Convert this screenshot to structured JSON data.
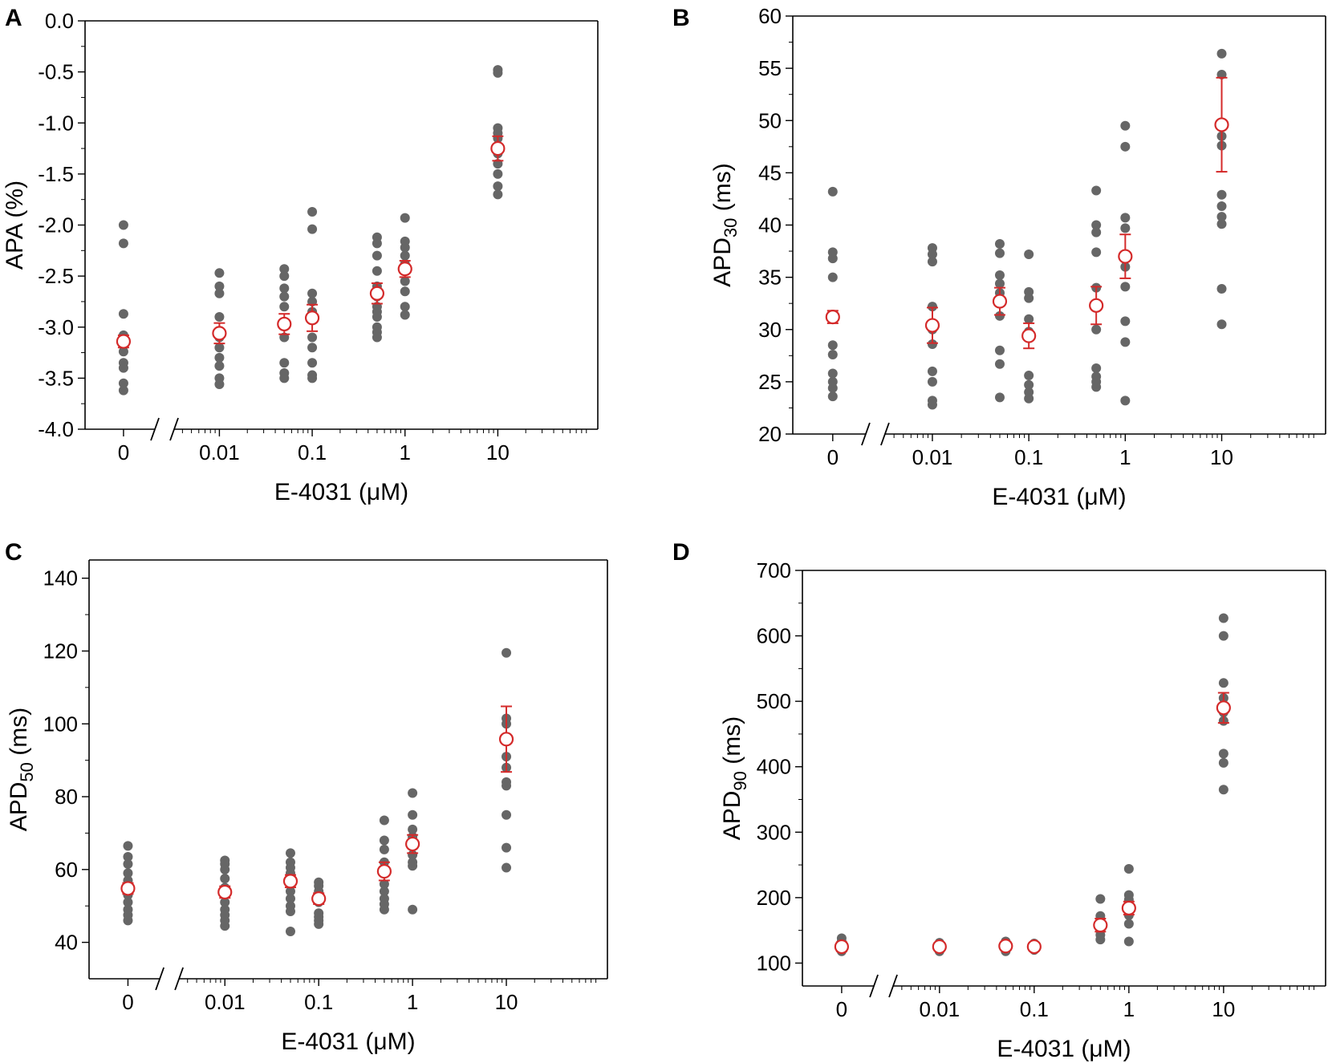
{
  "figure": {
    "colors": {
      "point": "#666666",
      "mean": "#d42a2a",
      "axis": "#000000"
    }
  },
  "chart_data": [
    {
      "panel": "A",
      "type": "scatter",
      "ylabel": "APA (%)",
      "ylabel_sub": "",
      "ylabel_after": "",
      "xlabel": "E-4031 (μM)",
      "x_ticks": [
        "0",
        "0.01",
        "0.1",
        "1",
        "10"
      ],
      "ylim": [
        -4.0,
        0.0
      ],
      "y_ticks": [
        -4.0,
        -3.5,
        -3.0,
        -2.5,
        -2.0,
        -1.5,
        -1.0,
        -0.5,
        0.0
      ],
      "y_tick_labels": [
        "-4.0",
        "-3.5",
        "-3.0",
        "-2.5",
        "-2.0",
        "-1.5",
        "-1.0",
        "-0.5",
        "0.0"
      ],
      "groups": [
        {
          "dose": 0,
          "values": [
            -2.0,
            -2.18,
            -2.87,
            -3.08,
            -3.12,
            -3.18,
            -3.24,
            -3.35,
            -3.4,
            -3.55,
            -3.62
          ],
          "mean": -3.14,
          "err": 0.06
        },
        {
          "dose": 0.01,
          "values": [
            -2.47,
            -2.6,
            -2.67,
            -2.9,
            -3.05,
            -3.1,
            -3.2,
            -3.3,
            -3.38,
            -3.5,
            -3.56
          ],
          "mean": -3.06,
          "err": 0.1
        },
        {
          "dose": 0.05,
          "values": [
            -2.43,
            -2.5,
            -2.62,
            -2.7,
            -2.8,
            -2.95,
            -3.1,
            -3.35,
            -3.45,
            -3.5
          ],
          "mean": -2.97,
          "err": 0.1
        },
        {
          "dose": 0.1,
          "values": [
            -1.87,
            -2.04,
            -2.67,
            -2.75,
            -2.85,
            -3.1,
            -3.2,
            -3.35,
            -3.47,
            -3.5
          ],
          "mean": -2.91,
          "err": 0.13
        },
        {
          "dose": 0.5,
          "values": [
            -2.12,
            -2.18,
            -2.3,
            -2.45,
            -2.6,
            -2.7,
            -2.8,
            -2.85,
            -2.9,
            -3.0,
            -3.05,
            -3.1
          ],
          "mean": -2.67,
          "err": 0.1
        },
        {
          "dose": 1,
          "values": [
            -1.93,
            -2.16,
            -2.22,
            -2.3,
            -2.38,
            -2.45,
            -2.55,
            -2.65,
            -2.8,
            -2.88
          ],
          "mean": -2.43,
          "err": 0.08
        },
        {
          "dose": 10,
          "values": [
            -0.48,
            -0.51,
            -1.05,
            -1.1,
            -1.15,
            -1.25,
            -1.3,
            -1.4,
            -1.5,
            -1.62,
            -1.7
          ],
          "mean": -1.25,
          "err": 0.12
        }
      ]
    },
    {
      "panel": "B",
      "type": "scatter",
      "ylabel": "APD",
      "ylabel_sub": "30",
      "ylabel_after": " (ms)",
      "xlabel": "E-4031 (μM)",
      "x_ticks": [
        "0",
        "0.01",
        "0.1",
        "1",
        "10"
      ],
      "ylim": [
        20,
        60
      ],
      "y_ticks": [
        20,
        25,
        30,
        35,
        40,
        45,
        50,
        55,
        60
      ],
      "y_tick_labels": [
        "20",
        "25",
        "30",
        "35",
        "40",
        "45",
        "50",
        "55",
        "60"
      ],
      "groups": [
        {
          "dose": 0,
          "values": [
            43.2,
            37.4,
            36.8,
            35.0,
            31.0,
            28.5,
            27.6,
            25.8,
            25.0,
            24.4,
            23.6
          ],
          "mean": 31.2,
          "err": 0.6
        },
        {
          "dose": 0.01,
          "values": [
            37.8,
            37.2,
            36.5,
            32.2,
            30.0,
            28.6,
            26.0,
            25.0,
            23.2,
            22.8
          ],
          "mean": 30.4,
          "err": 1.7
        },
        {
          "dose": 0.05,
          "values": [
            38.2,
            37.3,
            35.2,
            34.4,
            33.5,
            31.3,
            28.0,
            26.7,
            23.5
          ],
          "mean": 32.7,
          "err": 1.3
        },
        {
          "dose": 0.1,
          "values": [
            37.2,
            33.6,
            33.0,
            31.0,
            29.8,
            25.6,
            24.7,
            24.0,
            23.4
          ],
          "mean": 29.4,
          "err": 1.2
        },
        {
          "dose": 0.5,
          "values": [
            43.3,
            40.0,
            39.3,
            37.4,
            34.0,
            30.0,
            26.3,
            25.5,
            25.0,
            24.5
          ],
          "mean": 32.3,
          "err": 1.8
        },
        {
          "dose": 1,
          "values": [
            49.5,
            47.5,
            40.7,
            39.7,
            36.0,
            34.1,
            30.8,
            28.8,
            23.2
          ],
          "mean": 37.0,
          "err": 2.1
        },
        {
          "dose": 10,
          "values": [
            56.4,
            54.4,
            48.5,
            47.6,
            42.9,
            41.8,
            40.8,
            40.1,
            33.9,
            30.5
          ],
          "mean": 49.6,
          "err": 4.5
        }
      ]
    },
    {
      "panel": "C",
      "type": "scatter",
      "ylabel": "APD",
      "ylabel_sub": "50",
      "ylabel_after": " (ms)",
      "xlabel": "E-4031 (μM)",
      "x_ticks": [
        "0",
        "0.01",
        "0.1",
        "1",
        "10"
      ],
      "ylim": [
        30,
        145
      ],
      "y_ticks": [
        40,
        60,
        80,
        100,
        120,
        140
      ],
      "y_tick_labels": [
        "40",
        "60",
        "80",
        "100",
        "120",
        "140"
      ],
      "groups": [
        {
          "dose": 0,
          "values": [
            66.5,
            63.5,
            61.5,
            59.0,
            57.0,
            55.0,
            53.0,
            51.0,
            49.0,
            47.5,
            46.0
          ],
          "mean": 54.8,
          "err": 1.5
        },
        {
          "dose": 0.01,
          "values": [
            62.5,
            61.5,
            60.0,
            57.5,
            55.0,
            53.0,
            51.0,
            49.0,
            47.5,
            46.0,
            44.5
          ],
          "mean": 53.8,
          "err": 1.6
        },
        {
          "dose": 0.05,
          "values": [
            64.5,
            62.0,
            60.5,
            59.0,
            57.5,
            56.0,
            54.0,
            52.0,
            50.0,
            48.5,
            43.0
          ],
          "mean": 56.8,
          "err": 1.7
        },
        {
          "dose": 0.1,
          "values": [
            56.5,
            55.5,
            54.0,
            52.5,
            51.0,
            48.0,
            47.0,
            46.0,
            45.0
          ],
          "mean": 52.0,
          "err": 1.5
        },
        {
          "dose": 0.5,
          "values": [
            73.5,
            68.0,
            65.5,
            62.0,
            59.0,
            56.0,
            54.0,
            52.0,
            50.5,
            49.0
          ],
          "mean": 59.5,
          "err": 2.5
        },
        {
          "dose": 1,
          "values": [
            81.0,
            75.0,
            71.0,
            69.0,
            67.0,
            64.0,
            62.0,
            61.0,
            49.0
          ],
          "mean": 67.0,
          "err": 2.5
        },
        {
          "dose": 10,
          "values": [
            119.5,
            101.5,
            100.0,
            91.0,
            88.0,
            84.0,
            83.0,
            75.0,
            66.0,
            60.5
          ],
          "mean": 95.8,
          "err": 9.0
        }
      ]
    },
    {
      "panel": "D",
      "type": "scatter",
      "ylabel": "APD",
      "ylabel_sub": "90",
      "ylabel_after": " (ms)",
      "xlabel": "E-4031 (μM)",
      "x_ticks": [
        "0",
        "0.01",
        "0.1",
        "1",
        "10"
      ],
      "ylim": [
        65,
        700
      ],
      "y_ticks": [
        100,
        200,
        300,
        400,
        500,
        600,
        700
      ],
      "y_tick_labels": [
        "100",
        "200",
        "300",
        "400",
        "500",
        "600",
        "700"
      ],
      "groups": [
        {
          "dose": 0,
          "values": [
            138,
            133,
            129,
            126,
            123,
            120,
            118
          ],
          "mean": 125,
          "err": 7
        },
        {
          "dose": 0.01,
          "values": [
            131,
            128,
            125,
            122,
            120,
            118
          ],
          "mean": 125,
          "err": 6
        },
        {
          "dose": 0.05,
          "values": [
            133,
            130,
            127,
            124,
            121,
            118
          ],
          "mean": 126,
          "err": 6
        },
        {
          "dose": 0.1,
          "values": [
            130,
            127,
            124,
            122,
            120
          ],
          "mean": 125,
          "err": 6
        },
        {
          "dose": 0.5,
          "values": [
            198,
            172,
            165,
            158,
            150,
            143,
            136
          ],
          "mean": 158,
          "err": 10
        },
        {
          "dose": 1,
          "values": [
            244,
            204,
            197,
            188,
            180,
            173,
            160,
            133
          ],
          "mean": 184,
          "err": 10
        },
        {
          "dose": 10,
          "values": [
            627,
            600,
            528,
            505,
            492,
            483,
            470,
            420,
            406,
            365
          ],
          "mean": 490,
          "err": 23
        }
      ]
    }
  ]
}
